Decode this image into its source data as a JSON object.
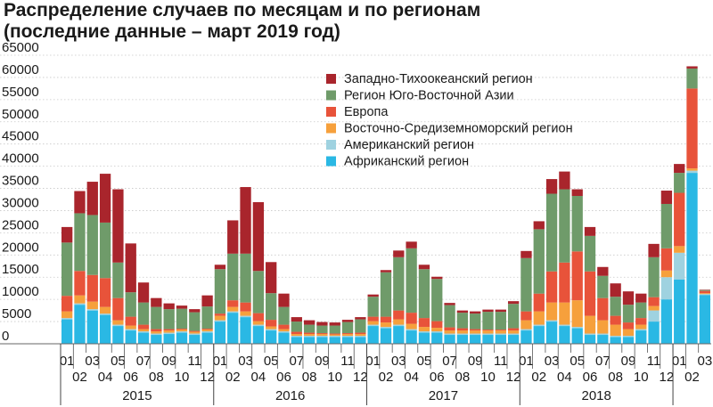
{
  "title_line1": "Распределение случаев по месяцам и по регионам",
  "title_line2": "(последние данные – март 2019 год)",
  "chart_data": {
    "type": "bar",
    "stacked": true,
    "title": "Распределение случаев по месяцам и по регионам (последние данные – март 2019 год)",
    "xlabel": "",
    "ylabel": "",
    "ylim": [
      0,
      65000
    ],
    "yticks": [
      0,
      5000,
      10000,
      15000,
      20000,
      25000,
      30000,
      35000,
      40000,
      45000,
      50000,
      55000,
      60000,
      65000
    ],
    "grid": true,
    "legend_position": "top-right",
    "categories": [
      "01",
      "02",
      "03",
      "04",
      "05",
      "06",
      "07",
      "08",
      "09",
      "10",
      "11",
      "12",
      "01",
      "02",
      "03",
      "04",
      "05",
      "06",
      "07",
      "08",
      "09",
      "10",
      "11",
      "12",
      "01",
      "02",
      "03",
      "04",
      "05",
      "06",
      "07",
      "08",
      "09",
      "10",
      "11",
      "12",
      "01",
      "02",
      "03",
      "04",
      "05",
      "06",
      "07",
      "08",
      "09",
      "10",
      "11",
      "12",
      "01",
      "02",
      "03"
    ],
    "year_labels": [
      "2015",
      "2016",
      "2017",
      "2018"
    ],
    "colors": [
      "#2ab8e4",
      "#9fd2e0",
      "#f6a03c",
      "#e8533a",
      "#6f9b6a",
      "#a9252c"
    ],
    "series": [
      {
        "name": "Африканский регион",
        "values": [
          5500,
          8800,
          7500,
          6500,
          4000,
          3000,
          2500,
          2000,
          2200,
          2500,
          2000,
          2500,
          5000,
          7000,
          6000,
          4000,
          3000,
          2500,
          1500,
          1500,
          1500,
          1500,
          1500,
          1500,
          4000,
          3500,
          4000,
          3000,
          2500,
          2500,
          2000,
          2000,
          2000,
          2000,
          2000,
          2000,
          3000,
          4000,
          5000,
          4000,
          3500,
          2000,
          2000,
          1500,
          1500,
          3000,
          5000,
          10000,
          14500,
          38500,
          11000
        ]
      },
      {
        "name": "Американский регион",
        "values": [
          300,
          300,
          300,
          300,
          300,
          300,
          300,
          300,
          300,
          300,
          300,
          300,
          300,
          300,
          300,
          300,
          300,
          300,
          300,
          300,
          300,
          300,
          300,
          300,
          300,
          300,
          300,
          300,
          300,
          300,
          300,
          300,
          300,
          300,
          300,
          300,
          300,
          300,
          300,
          300,
          300,
          300,
          300,
          300,
          300,
          300,
          2500,
          5000,
          6000,
          500,
          200
        ]
      },
      {
        "name": "Восточно-Средиземноморский регион",
        "values": [
          1500,
          1800,
          1700,
          1500,
          1000,
          800,
          500,
          500,
          500,
          400,
          400,
          400,
          1000,
          1000,
          1000,
          800,
          600,
          500,
          400,
          400,
          400,
          300,
          400,
          400,
          800,
          1000,
          1200,
          1200,
          1000,
          800,
          700,
          700,
          700,
          700,
          700,
          700,
          2000,
          3000,
          4000,
          5000,
          6000,
          4000,
          3000,
          2500,
          1500,
          1000,
          1000,
          1500,
          1500,
          500,
          200
        ]
      },
      {
        "name": "Европа",
        "values": [
          3500,
          5500,
          6000,
          6500,
          5000,
          2000,
          1000,
          500,
          300,
          200,
          200,
          200,
          500,
          1500,
          2000,
          1800,
          1500,
          1000,
          500,
          300,
          200,
          200,
          200,
          300,
          1000,
          1300,
          2000,
          2500,
          2000,
          1500,
          700,
          500,
          300,
          200,
          200,
          500,
          2000,
          4000,
          7000,
          9000,
          11000,
          10000,
          5000,
          2000,
          1500,
          1500,
          2000,
          5000,
          12000,
          18000,
          500
        ]
      },
      {
        "name": "Регион Юго-Восточной Азии",
        "values": [
          12000,
          13000,
          13500,
          12500,
          8000,
          5500,
          5000,
          5000,
          4500,
          4500,
          4200,
          5000,
          10000,
          10500,
          11000,
          9500,
          6000,
          4000,
          2300,
          1800,
          1700,
          1800,
          2500,
          3000,
          4500,
          10000,
          12000,
          14500,
          11000,
          9500,
          5000,
          3500,
          3500,
          4000,
          4000,
          5500,
          12000,
          14500,
          17500,
          16500,
          12500,
          8000,
          5000,
          4300,
          4000,
          3500,
          9000,
          10000,
          4500,
          4500,
          200
        ]
      },
      {
        "name": "Западно-Тихоокеанский регион",
        "values": [
          3500,
          5000,
          7500,
          11000,
          16500,
          11000,
          4500,
          2000,
          1300,
          700,
          700,
          2500,
          1000,
          7500,
          15000,
          15500,
          7000,
          3000,
          1000,
          1000,
          800,
          700,
          500,
          500,
          500,
          500,
          1500,
          1500,
          1000,
          500,
          500,
          500,
          500,
          500,
          500,
          600,
          1600,
          1800,
          3300,
          4000,
          1500,
          2000,
          2000,
          3000,
          3000,
          2000,
          3000,
          3000,
          2000,
          500,
          100
        ]
      }
    ]
  }
}
